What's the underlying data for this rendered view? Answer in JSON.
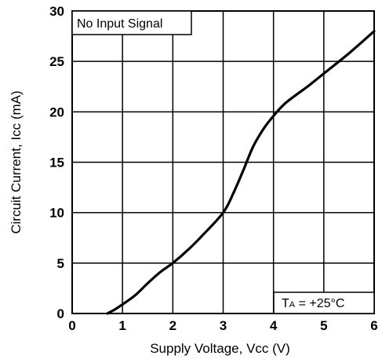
{
  "chart_data": {
    "type": "line",
    "xlabel": "Supply Voltage, Vcc  (V)",
    "ylabel": "Circuit Current, Icc (mA)",
    "xlim": [
      0,
      6
    ],
    "ylim": [
      0,
      30
    ],
    "x_ticks": [
      "0",
      "1",
      "2",
      "3",
      "4",
      "5",
      "6"
    ],
    "y_ticks": [
      "0",
      "5",
      "10",
      "15",
      "20",
      "25",
      "30"
    ],
    "grid": true,
    "annotations": {
      "top_left": "No Input Signal",
      "bottom_right_prefix": "T",
      "bottom_right_sub": "A",
      "bottom_right_suffix": " = +25°C"
    },
    "series": [
      {
        "x": [
          0.7,
          0.85,
          1.0,
          1.25,
          1.5,
          1.75,
          2.0,
          2.3,
          2.6,
          3.0,
          3.2,
          3.4,
          3.6,
          3.8,
          4.0,
          4.2,
          4.4,
          4.7,
          5.0,
          5.5,
          6.0
        ],
        "y": [
          0.0,
          0.4,
          0.9,
          1.8,
          3.0,
          4.1,
          5.0,
          6.3,
          7.8,
          10.0,
          11.9,
          14.2,
          16.6,
          18.3,
          19.6,
          20.7,
          21.5,
          22.6,
          23.8,
          25.8,
          28.0
        ]
      }
    ],
    "line_color": "#000000"
  }
}
